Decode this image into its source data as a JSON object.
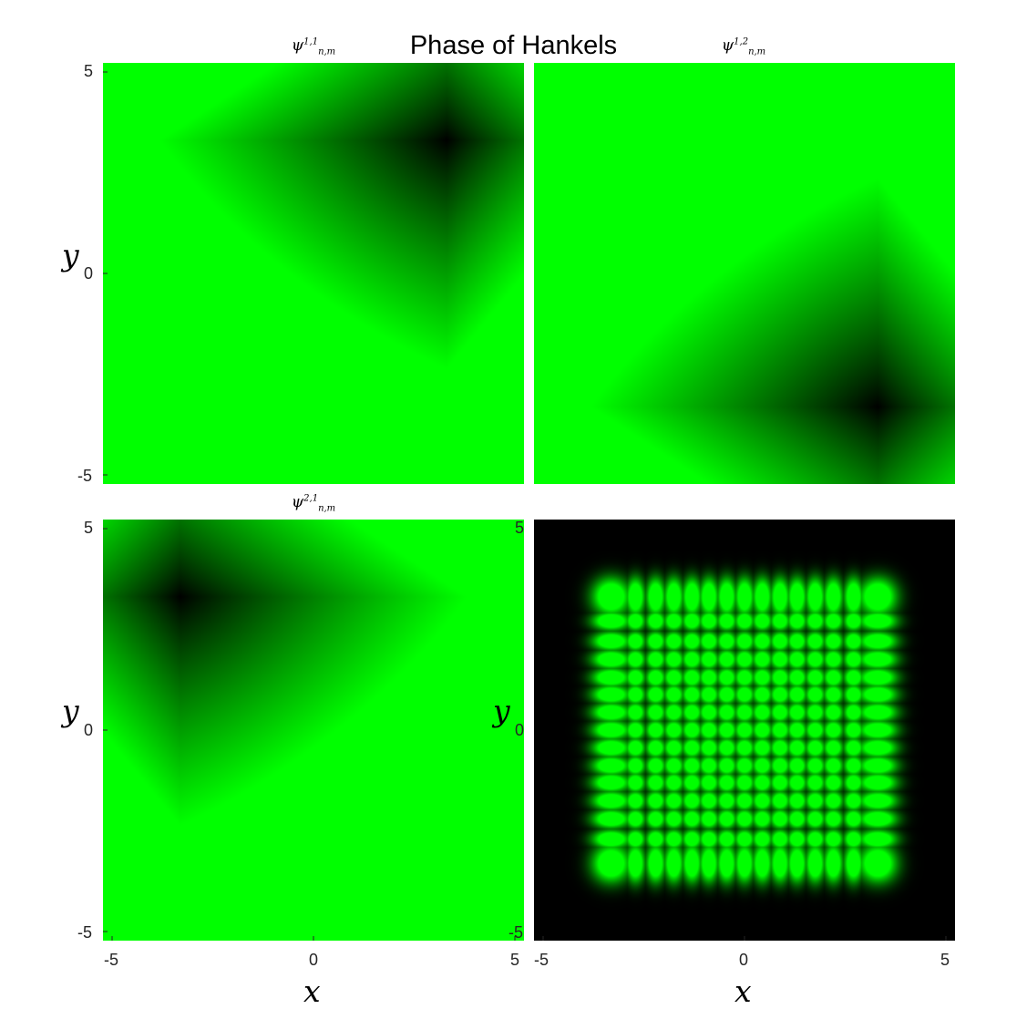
{
  "figure": {
    "suptitle": "Phase of Hankels"
  },
  "chart_data": [
    {
      "type": "heatmap",
      "title_main": "ψ",
      "title_sup": "1,1",
      "title_sub": "n,m",
      "ylabel": "y",
      "xlabel": "",
      "xlim": [
        -5.2,
        5.2
      ],
      "ylim": [
        -5.2,
        5.2
      ],
      "xticks": [],
      "yticks": [
        "5",
        "0",
        "-5"
      ],
      "colormap": [
        "#000000",
        "#00ff00"
      ],
      "dark_center": [
        3.3,
        3.3
      ]
    },
    {
      "type": "heatmap",
      "title_main": "ψ",
      "title_sup": "1,2",
      "title_sub": "n,m",
      "ylabel": "",
      "xlabel": "",
      "xlim": [
        -5.2,
        5.2
      ],
      "ylim": [
        -5.2,
        5.2
      ],
      "xticks": [],
      "yticks": [],
      "colormap": [
        "#000000",
        "#00ff00"
      ],
      "dark_center": [
        3.3,
        -3.3
      ]
    },
    {
      "type": "heatmap",
      "title_main": "ψ",
      "title_sup": "2,1",
      "title_sub": "n,m",
      "ylabel": "y",
      "xlabel": "x",
      "xlim": [
        -5.2,
        5.2
      ],
      "ylim": [
        -5.2,
        5.2
      ],
      "xticks": [
        "-5",
        "0",
        "5"
      ],
      "yticks": [
        "5",
        "0",
        "-5"
      ],
      "colormap": [
        "#000000",
        "#00ff00"
      ],
      "dark_center": [
        -3.3,
        3.3
      ]
    },
    {
      "type": "heatmap",
      "title_main": "",
      "title_sup": "",
      "title_sub": "",
      "ylabel": "y",
      "xlabel": "x",
      "xlim": [
        -5.2,
        5.2
      ],
      "ylim": [
        -5.2,
        5.2
      ],
      "xticks": [
        "-5",
        "0",
        "5"
      ],
      "yticks": [
        "5",
        "0",
        "-5"
      ],
      "colormap": [
        "#000000",
        "#00ff00"
      ],
      "lattice_positions": [
        -3.3,
        -2.7,
        -2.2,
        -1.75,
        -1.3,
        -0.88,
        -0.44,
        0,
        0.44,
        0.88,
        1.3,
        1.75,
        2.2,
        2.7,
        3.3
      ]
    }
  ]
}
